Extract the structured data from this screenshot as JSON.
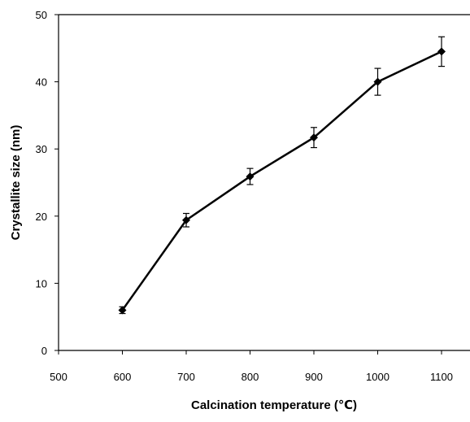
{
  "chart_data": {
    "type": "line",
    "title": "",
    "xlabel": "Calcination temperature (℃)",
    "ylabel": "Crystallite size (nm)",
    "xlim": [
      500,
      1100
    ],
    "ylim": [
      0,
      50
    ],
    "x_ticks": [
      500,
      600,
      700,
      800,
      900,
      1000,
      1100
    ],
    "y_ticks": [
      0,
      10,
      20,
      30,
      40,
      50
    ],
    "grid": false,
    "legend": "none",
    "series": [
      {
        "x": [
          600,
          700,
          800,
          900,
          1000,
          1100
        ],
        "y": [
          6.0,
          19.4,
          25.9,
          31.7,
          40.0,
          44.5
        ],
        "error": [
          0.5,
          1.0,
          1.2,
          1.5,
          2.0,
          2.2
        ],
        "color": "#000000",
        "marker": "diamond"
      }
    ]
  }
}
